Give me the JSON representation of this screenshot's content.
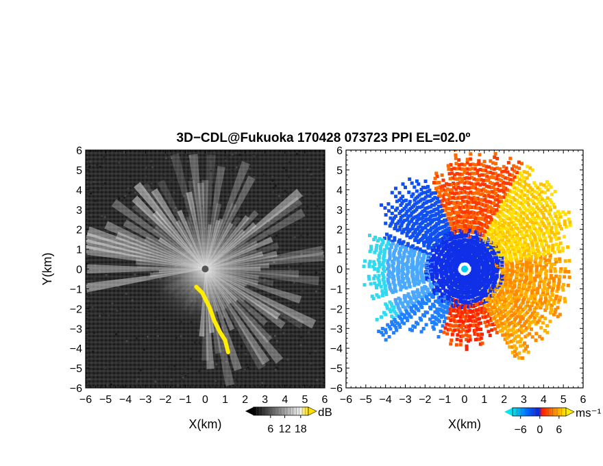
{
  "title": "3D−CDL@Fukuoka 170428 073723 PPI EL=02.0º",
  "chart_data": [
    {
      "type": "heatmap",
      "name": "reflectivity-panel",
      "xlabel": "X(km)",
      "ylabel": "Y(km)",
      "xlim": [
        -6,
        6
      ],
      "ylim": [
        -6,
        6
      ],
      "xticks": [
        "−6",
        "−5",
        "−4",
        "−3",
        "−2",
        "−1",
        "0",
        "1",
        "2",
        "3",
        "4",
        "5",
        "6"
      ],
      "yticks": [
        "−6",
        "−5",
        "−4",
        "−3",
        "−2",
        "−1",
        "0",
        "1",
        "2",
        "3",
        "4",
        "5",
        "6"
      ],
      "colorbar": {
        "unit": "dB",
        "ticks": [
          "6",
          "12",
          "18"
        ],
        "colors": [
          "#000000",
          "#ffffff",
          "#ffe000"
        ]
      },
      "features": [
        {
          "kind": "radar-center",
          "x": 0,
          "y": 0
        },
        {
          "kind": "highlight-band",
          "color": "#ffee00",
          "points": [
            [
              -0.45,
              -0.9
            ],
            [
              -0.15,
              -1.2
            ],
            [
              0.2,
              -1.9
            ],
            [
              0.45,
              -2.6
            ],
            [
              0.75,
              -3.2
            ],
            [
              1.0,
              -3.6
            ],
            [
              1.15,
              -4.2
            ]
          ]
        }
      ]
    },
    {
      "type": "heatmap",
      "name": "doppler-velocity-panel",
      "xlabel": "X(km)",
      "xlim": [
        -6,
        6
      ],
      "ylim": [
        -6,
        6
      ],
      "xticks": [
        "−6",
        "−5",
        "−4",
        "−3",
        "−2",
        "−1",
        "0",
        "1",
        "2",
        "3",
        "4",
        "5",
        "6"
      ],
      "yticks": [
        "−6",
        "−5",
        "−4",
        "−3",
        "−2",
        "−1",
        "0",
        "1",
        "2",
        "3",
        "4",
        "5",
        "6"
      ],
      "colorbar": {
        "unit": "ms⁻¹",
        "ticks": [
          "−6",
          "0",
          "6"
        ],
        "colors": [
          "#00e0f0",
          "#0050ff",
          "#ff2000",
          "#ffee00"
        ]
      },
      "features": [
        {
          "kind": "radar-center",
          "x": 0,
          "y": 0
        }
      ]
    }
  ]
}
